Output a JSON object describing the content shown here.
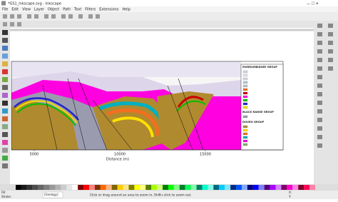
{
  "window": {
    "title": "*GS1_Inkscape.svg - Inkscape"
  },
  "menu": [
    "File",
    "Edit",
    "View",
    "Layer",
    "Object",
    "Path",
    "Text",
    "Filters",
    "Extensions",
    "Help"
  ],
  "figure": {
    "x_ticks": [
      "5000",
      "10000",
      "15000"
    ],
    "x_label": "Distance (m)",
    "legend": [
      "MURRUMBIDGEE GROUP",
      "BLACK RANGE GROUP",
      "DOURO GROUP"
    ]
  },
  "status": {
    "fill_label": "Fill:",
    "stroke_label": "Stroke:",
    "layer": "[Geology]",
    "message": "Click or drag around an area to zoom in, Shift+click to zoom out.",
    "x_label": "X:",
    "y_label": "Y:"
  }
}
